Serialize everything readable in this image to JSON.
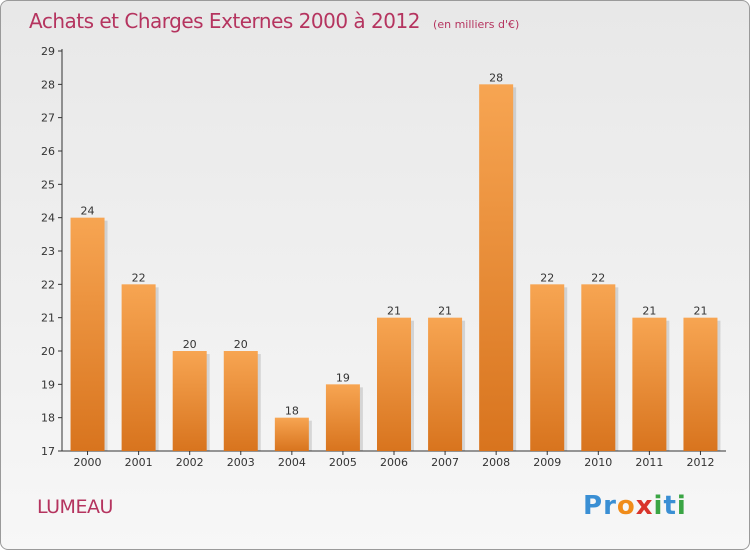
{
  "chart_data": {
    "type": "bar",
    "title": "Achats et Charges Externes 2000 à 2012",
    "subtitle": "(en milliers d'€)",
    "categories": [
      "2000",
      "2001",
      "2002",
      "2003",
      "2004",
      "2005",
      "2006",
      "2007",
      "2008",
      "2009",
      "2010",
      "2011",
      "2012"
    ],
    "values": [
      24,
      22,
      20,
      20,
      18,
      19,
      21,
      21,
      28,
      22,
      22,
      21,
      21
    ],
    "ylim": [
      17,
      29
    ],
    "yticks": [
      17,
      18,
      19,
      20,
      21,
      22,
      23,
      24,
      25,
      26,
      27,
      28,
      29
    ],
    "grid": false,
    "colors": {
      "bar_top": "#f7a552",
      "bar_bottom": "#d8741e",
      "axis": "#333333",
      "label": "#333333"
    }
  },
  "footer": {
    "commune": "LUMEAU",
    "logo_letters": [
      {
        "char": "P",
        "color": "#3a8fd4"
      },
      {
        "char": "r",
        "color": "#3a8fd4"
      },
      {
        "char": "o",
        "color": "#f08c1a"
      },
      {
        "char": "x",
        "color": "#d9342b"
      },
      {
        "char": "i",
        "color": "#3aa544"
      },
      {
        "char": "t",
        "color": "#3a8fd4"
      },
      {
        "char": "i",
        "color": "#3aa544"
      }
    ]
  }
}
